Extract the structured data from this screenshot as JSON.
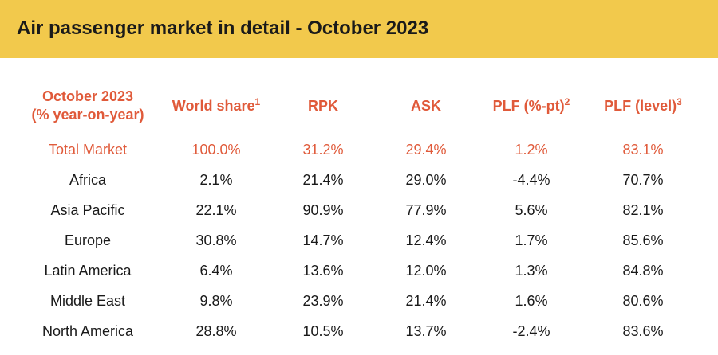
{
  "header": {
    "title": "Air passenger market in detail - October 2023"
  },
  "table": {
    "columns": [
      {
        "line1": "October 2023",
        "line2": "(% year-on-year)",
        "sup": ""
      },
      {
        "line1": "World share",
        "line2": "",
        "sup": "1"
      },
      {
        "line1": "RPK",
        "line2": "",
        "sup": ""
      },
      {
        "line1": "ASK",
        "line2": "",
        "sup": ""
      },
      {
        "line1": "PLF (%-pt)",
        "line2": "",
        "sup": "2"
      },
      {
        "line1": "PLF (level)",
        "line2": "",
        "sup": "3"
      }
    ],
    "rows": [
      {
        "region": "Total Market",
        "world_share": "100.0%",
        "rpk": "31.2%",
        "ask": "29.4%",
        "plf_pt": "1.2%",
        "plf_level": "83.1%"
      },
      {
        "region": "Africa",
        "world_share": "2.1%",
        "rpk": "21.4%",
        "ask": "29.0%",
        "plf_pt": "-4.4%",
        "plf_level": "70.7%"
      },
      {
        "region": "Asia Pacific",
        "world_share": "22.1%",
        "rpk": "90.9%",
        "ask": "77.9%",
        "plf_pt": "5.6%",
        "plf_level": "82.1%"
      },
      {
        "region": "Europe",
        "world_share": "30.8%",
        "rpk": "14.7%",
        "ask": "12.4%",
        "plf_pt": "1.7%",
        "plf_level": "85.6%"
      },
      {
        "region": "Latin America",
        "world_share": "6.4%",
        "rpk": "13.6%",
        "ask": "12.0%",
        "plf_pt": "1.3%",
        "plf_level": "84.8%"
      },
      {
        "region": "Middle East",
        "world_share": "9.8%",
        "rpk": "23.9%",
        "ask": "21.4%",
        "plf_pt": "1.6%",
        "plf_level": "80.6%"
      },
      {
        "region": "North America",
        "world_share": "28.8%",
        "rpk": "10.5%",
        "ask": "13.7%",
        "plf_pt": "-2.4%",
        "plf_level": "83.6%"
      }
    ]
  },
  "colors": {
    "banner": "#f2c94c",
    "accent": "#e05a3a",
    "text": "#1a1a1a"
  }
}
